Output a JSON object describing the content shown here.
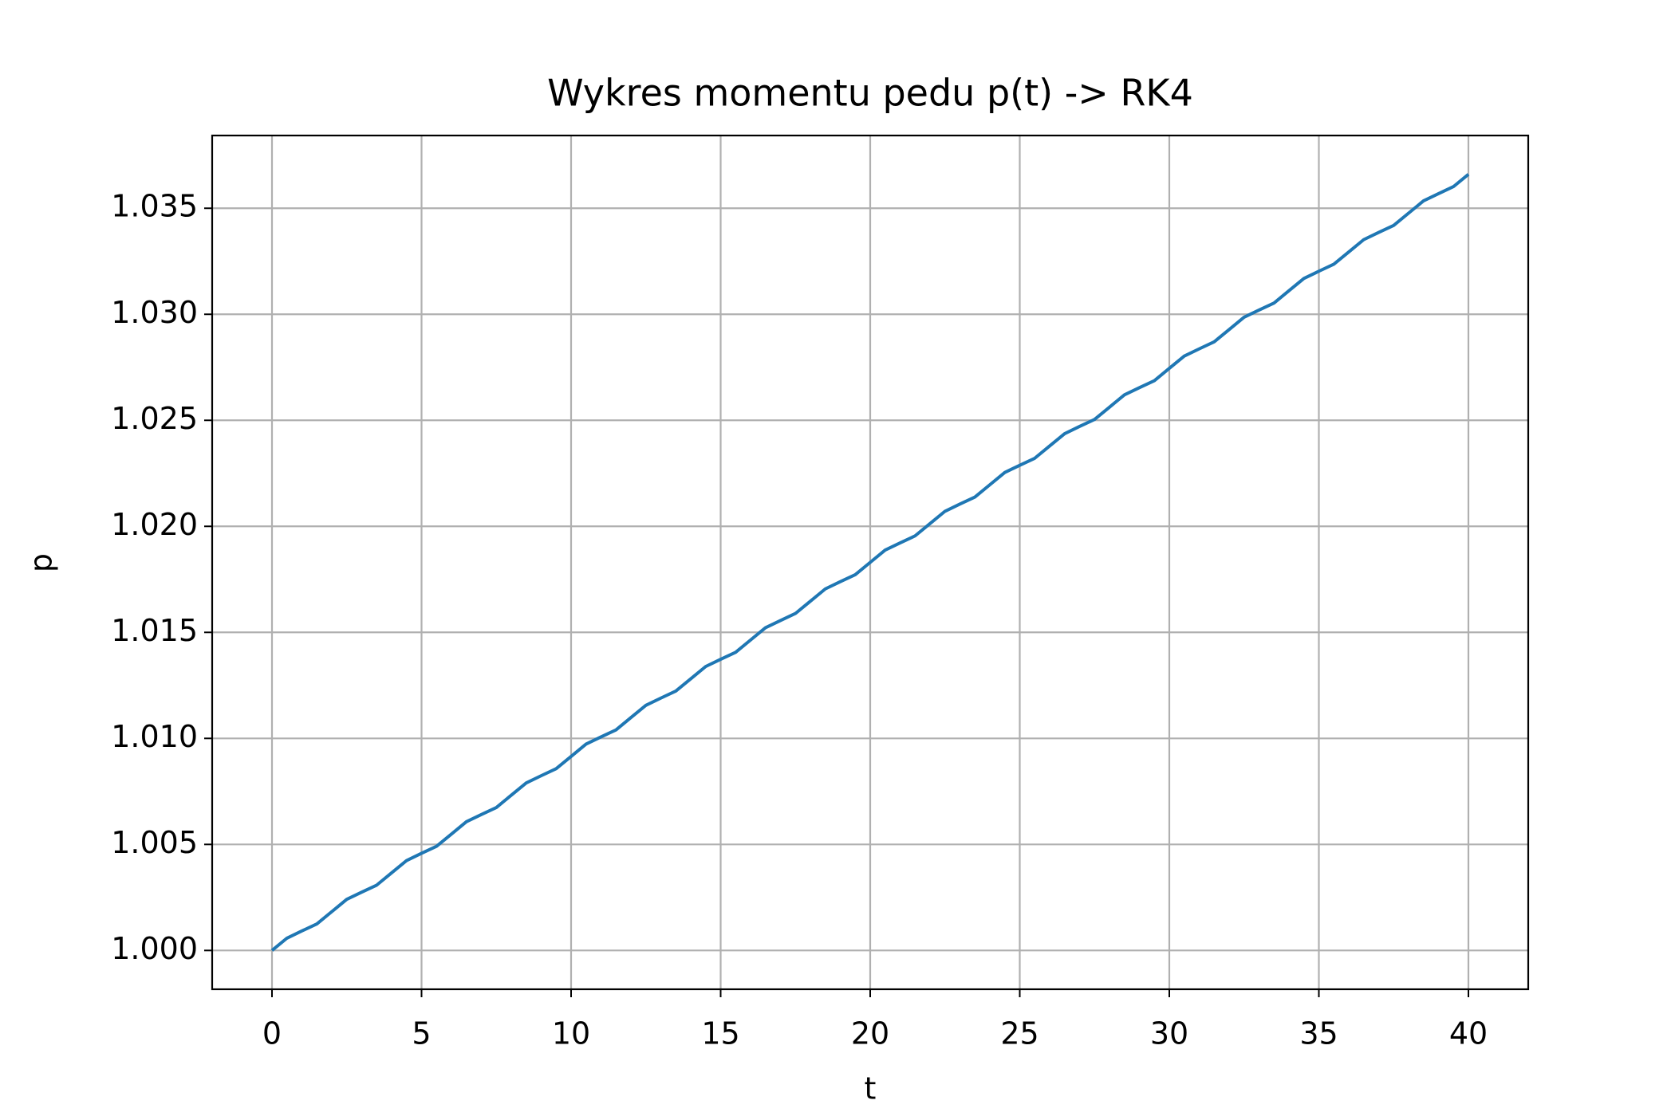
{
  "chart_data": {
    "type": "line",
    "title": "Wykres momentu pedu p(t) -> RK4",
    "xlabel": "t",
    "ylabel": "p",
    "x": [
      0,
      0.5,
      1,
      1.5,
      2,
      2.5,
      3,
      3.5,
      4,
      4.5,
      5,
      5.5,
      6,
      6.5,
      7,
      7.5,
      8,
      8.5,
      9,
      9.5,
      10,
      10.5,
      11,
      11.5,
      12,
      12.5,
      13,
      13.5,
      14,
      14.5,
      15,
      15.5,
      16,
      16.5,
      17,
      17.5,
      18,
      18.5,
      19,
      19.5,
      20,
      20.5,
      21,
      21.5,
      22,
      22.5,
      23,
      23.5,
      24,
      24.5,
      25,
      25.5,
      26,
      26.5,
      27,
      27.5,
      28,
      28.5,
      29,
      29.5,
      30,
      30.5,
      31,
      31.5,
      32,
      32.5,
      33,
      33.5,
      34,
      34.5,
      35,
      35.5,
      36,
      36.5,
      37,
      37.5,
      38,
      38.5,
      39,
      39.5,
      40
    ],
    "series": [
      {
        "color": "#1f77b4",
        "values": [
          1.0,
          1.00058,
          1.00092,
          1.00125,
          1.00183,
          1.00241,
          1.00275,
          1.00308,
          1.00366,
          1.00424,
          1.00458,
          1.00491,
          1.00549,
          1.00607,
          1.00641,
          1.00674,
          1.00732,
          1.0079,
          1.00824,
          1.00857,
          1.00915,
          1.00973,
          1.01007,
          1.0104,
          1.01098,
          1.01156,
          1.0119,
          1.01223,
          1.01281,
          1.01339,
          1.01373,
          1.01406,
          1.01464,
          1.01522,
          1.01556,
          1.01589,
          1.01647,
          1.01705,
          1.01739,
          1.01772,
          1.0183,
          1.01888,
          1.01922,
          1.01955,
          1.02013,
          1.02071,
          1.02105,
          1.02138,
          1.02196,
          1.02254,
          1.02288,
          1.02321,
          1.02379,
          1.02437,
          1.02471,
          1.02504,
          1.02562,
          1.0262,
          1.02654,
          1.02687,
          1.02745,
          1.02803,
          1.02837,
          1.0287,
          1.02928,
          1.02986,
          1.0302,
          1.03053,
          1.03111,
          1.03169,
          1.03203,
          1.03236,
          1.03294,
          1.03352,
          1.03386,
          1.03419,
          1.03477,
          1.03535,
          1.03569,
          1.03602,
          1.0366
        ]
      }
    ],
    "xlim": [
      -2,
      42
    ],
    "xticks": [
      0,
      5,
      10,
      15,
      20,
      25,
      30,
      35,
      40
    ],
    "ylim": [
      0.99817,
      1.03843
    ],
    "yticks": [
      {
        "value": 1.0,
        "label": "1.000"
      },
      {
        "value": 1.005,
        "label": "1.005"
      },
      {
        "value": 1.01,
        "label": "1.010"
      },
      {
        "value": 1.015,
        "label": "1.015"
      },
      {
        "value": 1.02,
        "label": "1.020"
      },
      {
        "value": 1.025,
        "label": "1.025"
      },
      {
        "value": 1.03,
        "label": "1.030"
      },
      {
        "value": 1.035,
        "label": "1.035"
      }
    ],
    "grid": true
  }
}
